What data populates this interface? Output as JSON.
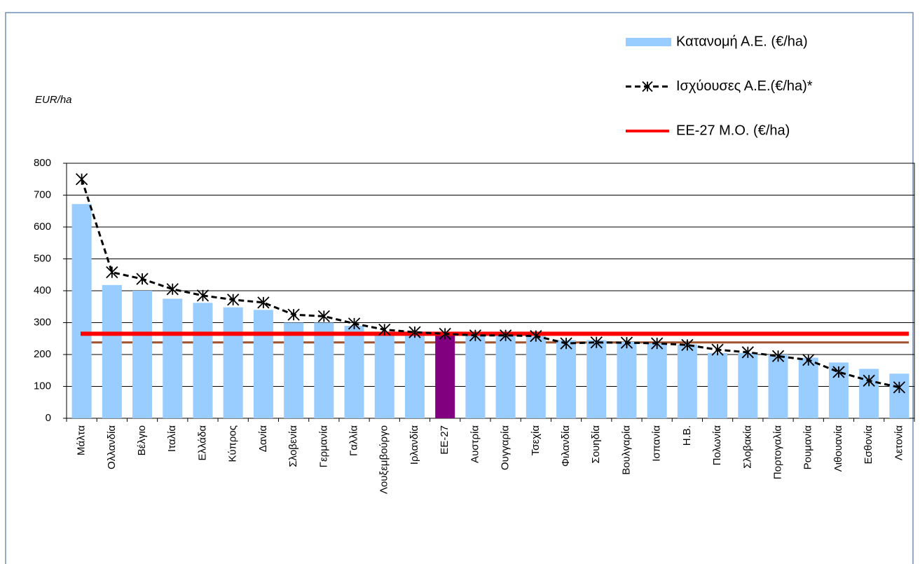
{
  "chart_data": {
    "type": "bar",
    "y_label": "EUR/ha",
    "categories": [
      "Μάλτα",
      "Ολλανδία",
      "Βέλγιο",
      "Ιταλία",
      "Ελλάδα",
      "Κύπρος",
      "Δανία",
      "Σλοβενία",
      "Γερμανία",
      "Γαλλία",
      "Λουξεμβούργο",
      "Ιρλανδία",
      "ΕΕ-27",
      "Αυστρία",
      "Ουγγαρία",
      "Τσεχία",
      "Φιλανδία",
      "Σουηδία",
      "Βουλγαρία",
      "Ισπανία",
      "Η.Β.",
      "Πολωνία",
      "Σλοβακία",
      "Πορτογαλία",
      "Ρουμανία",
      "Λιθουανία",
      "Εσθονία",
      "Λετονία"
    ],
    "series": [
      {
        "name": "Κατανομή Α.Ε. (€/ha)",
        "type": "bar",
        "color": "#99ccff",
        "highlight_index": 12,
        "highlight_color": "#800080",
        "values": [
          672,
          418,
          400,
          375,
          362,
          348,
          340,
          300,
          300,
          290,
          265,
          265,
          265,
          262,
          260,
          258,
          245,
          245,
          240,
          235,
          232,
          205,
          205,
          200,
          190,
          175,
          155,
          140
        ]
      },
      {
        "name": "Ισχύουσες Α.Ε.(€/ha)*",
        "type": "line",
        "color": "#000000",
        "dashed": true,
        "marker": "asterisk",
        "values": [
          750,
          458,
          437,
          405,
          385,
          372,
          363,
          325,
          320,
          297,
          278,
          270,
          265,
          260,
          260,
          258,
          235,
          238,
          237,
          235,
          230,
          215,
          207,
          195,
          183,
          145,
          118,
          97
        ]
      },
      {
        "name": "ΕΕ-27 Μ.Ο. (€/ha)",
        "type": "hline",
        "color": "#ff0000",
        "value": 265
      }
    ],
    "reference_lines": [
      {
        "value": 238,
        "color": "#a0522d"
      }
    ],
    "ylim": [
      0,
      800
    ],
    "yticks": [
      0,
      100,
      200,
      300,
      400,
      500,
      600,
      700,
      800
    ],
    "grid": true
  }
}
